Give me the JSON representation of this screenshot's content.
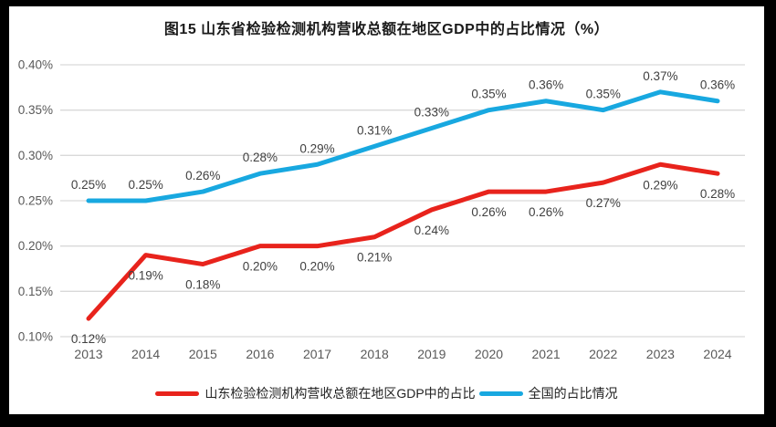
{
  "title": "图15  山东省检验检测机构营收总额在地区GDP中的占比情况（%）",
  "colors": {
    "frame_border": "#000000",
    "background": "#ffffff",
    "gridline": "#d9d9d9",
    "tick_label": "#595959",
    "data_label": "#404040",
    "series_shandong": "#e8231c",
    "series_national": "#18a8e0"
  },
  "legend": {
    "items": [
      {
        "label": "山东检验检测机构营收总额在地区GDP中的占比",
        "color": "#e8231c"
      },
      {
        "label": "全国的占比情况",
        "color": "#18a8e0"
      }
    ]
  },
  "chart_data": {
    "type": "line",
    "title": "图15  山东省检验检测机构营收总额在地区GDP中的占比情况（%）",
    "x": [
      "2013",
      "2014",
      "2015",
      "2016",
      "2017",
      "2018",
      "2019",
      "2020",
      "2021",
      "2022",
      "2023",
      "2024"
    ],
    "series": [
      {
        "name": "山东检验检测机构营收总额在地区GDP中的占比",
        "color": "#e8231c",
        "values": [
          0.12,
          0.19,
          0.18,
          0.2,
          0.2,
          0.21,
          0.24,
          0.26,
          0.26,
          0.27,
          0.29,
          0.28
        ],
        "labels": [
          "0.12%",
          "0.19%",
          "0.18%",
          "0.20%",
          "0.20%",
          "0.21%",
          "0.24%",
          "0.26%",
          "0.26%",
          "0.27%",
          "0.29%",
          "0.28%"
        ],
        "label_position": "below"
      },
      {
        "name": "全国的占比情况",
        "color": "#18a8e0",
        "values": [
          0.25,
          0.25,
          0.26,
          0.28,
          0.29,
          0.31,
          0.33,
          0.35,
          0.36,
          0.35,
          0.37,
          0.36
        ],
        "labels": [
          "0.25%",
          "0.25%",
          "0.26%",
          "0.28%",
          "0.29%",
          "0.31%",
          "0.33%",
          "0.35%",
          "0.36%",
          "0.35%",
          "0.37%",
          "0.36%"
        ],
        "label_position": "above"
      }
    ],
    "xlabel": "",
    "ylabel": "",
    "ylim": [
      0.1,
      0.4
    ],
    "ytick_step": 0.05,
    "ytick_labels": [
      "0.10%",
      "0.15%",
      "0.20%",
      "0.25%",
      "0.30%",
      "0.35%",
      "0.40%"
    ],
    "grid": true,
    "legend_position": "bottom"
  }
}
